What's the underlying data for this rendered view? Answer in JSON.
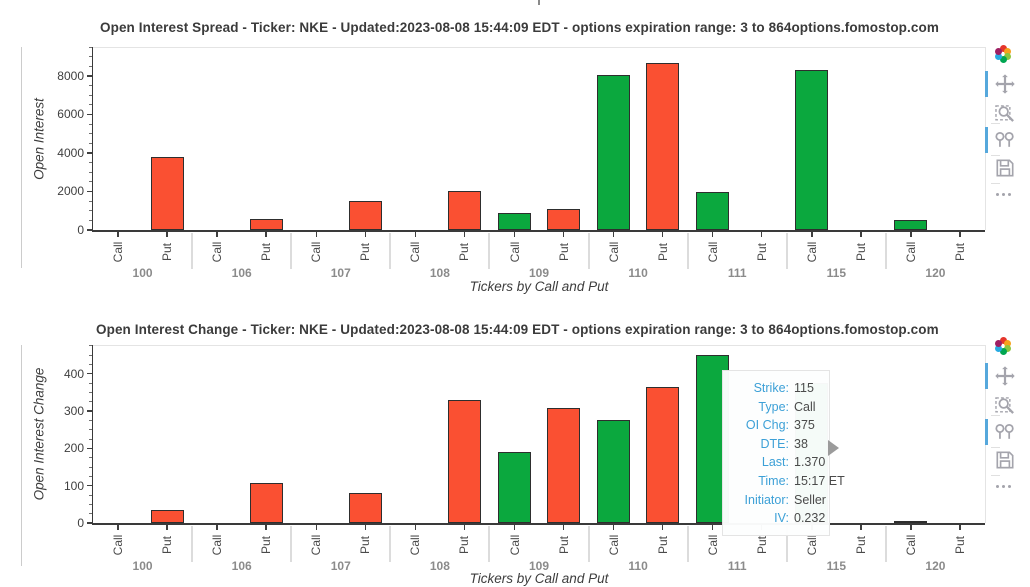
{
  "page": {
    "top_fragment": "|"
  },
  "colors": {
    "call": "#0ba83e",
    "put": "#fa5032",
    "bar_border": "#2e2e2e",
    "title_text": "#3b3b3b",
    "tick_text": "#3f3f3f",
    "group_text": "#8b8b8b",
    "modebar_icon": "#a4a4ac",
    "modebar_active": "#56a8dc",
    "tooltip_label": "#3ca0d7",
    "tooltip_value": "#4a4a4a"
  },
  "modebar": {
    "logo_name": "fomostop-color-logo",
    "logo_colors": [
      "#e5352b",
      "#f6a21d",
      "#8cc63f",
      "#00a651",
      "#27aae1",
      "#9e1f63"
    ],
    "icons": [
      {
        "name": "pan-icon",
        "active": true
      },
      {
        "name": "zoom-box-icon",
        "active": false
      },
      {
        "name": "compare-hover-icon",
        "active": true
      },
      {
        "name": "save-icon",
        "active": false
      },
      {
        "name": "more-icon",
        "active": false
      }
    ]
  },
  "chart_data": [
    {
      "type": "bar",
      "title": "Open Interest Spread - Ticker: NKE - Updated:2023-08-08 15:44:09 EDT - options expiration range: 3 to 864",
      "watermark": "options.fomostop.com",
      "xlabel": "Tickers by Call and Put",
      "ylabel": "Open Interest",
      "categories": [
        "100",
        "106",
        "107",
        "108",
        "109",
        "110",
        "111",
        "115",
        "120"
      ],
      "series": [
        {
          "name": "Call",
          "color": "#0ba83e",
          "values": [
            0,
            0,
            0,
            0,
            860,
            8070,
            1990,
            8320,
            540
          ]
        },
        {
          "name": "Put",
          "color": "#fa5032",
          "values": [
            3800,
            560,
            1480,
            2000,
            1070,
            8670,
            0,
            0,
            0
          ]
        }
      ],
      "ylim": [
        0,
        9500
      ],
      "ytick_step": 2000,
      "yminor_step": 500,
      "ytick_labels": [
        "0",
        "2000",
        "4000",
        "6000",
        "8000"
      ],
      "grid": false,
      "legend": "none"
    },
    {
      "type": "bar",
      "title": "Open Interest Change - Ticker: NKE - Updated:2023-08-08 15:44:09 EDT - options expiration range: 3 to 864",
      "watermark": "options.fomostop.com",
      "xlabel": "Tickers by Call and Put",
      "ylabel": "Open Interest Change",
      "categories": [
        "100",
        "106",
        "107",
        "108",
        "109",
        "110",
        "111",
        "115",
        "120"
      ],
      "series": [
        {
          "name": "Call",
          "color": "#0ba83e",
          "values": [
            0,
            0,
            0,
            0,
            190,
            275,
            450,
            375,
            5
          ]
        },
        {
          "name": "Put",
          "color": "#fa5032",
          "values": [
            35,
            107,
            80,
            330,
            308,
            365,
            0,
            0,
            0
          ]
        }
      ],
      "ylim": [
        0,
        477
      ],
      "ytick_step": 100,
      "yminor_step": 25,
      "ytick_labels": [
        "0",
        "100",
        "200",
        "300",
        "400"
      ],
      "grid": false,
      "legend": "none"
    }
  ],
  "tooltip": {
    "rows": [
      {
        "label": "Strike:",
        "value": "115"
      },
      {
        "label": "Type:",
        "value": "Call"
      },
      {
        "label": "OI Chg:",
        "value": "375"
      },
      {
        "label": "DTE:",
        "value": "38"
      },
      {
        "label": "Last:",
        "value": "1.370"
      },
      {
        "label": "Time:",
        "value": "15:17 ET"
      },
      {
        "label": "Initiator:",
        "value": "Seller"
      },
      {
        "label": "IV:",
        "value": "0.232"
      }
    ]
  }
}
